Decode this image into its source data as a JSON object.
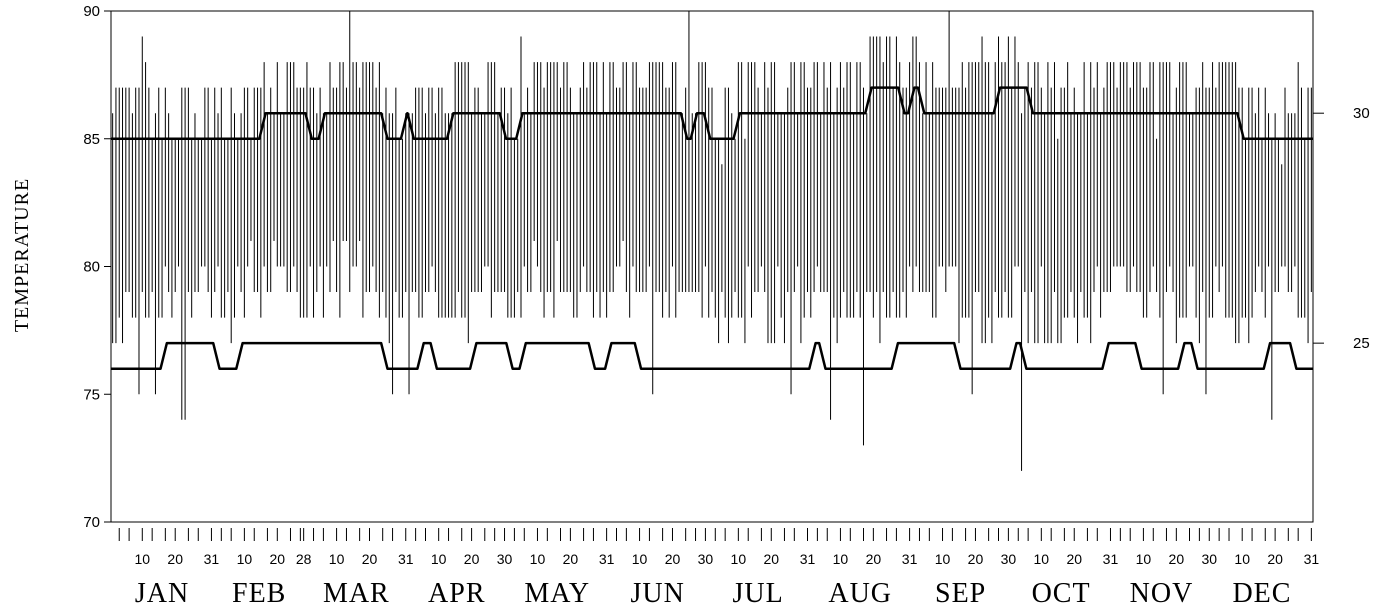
{
  "chart_data": {
    "type": "line",
    "title": "",
    "ylabel": "TEMPERATURE",
    "xlabel": "",
    "ylim": [
      70,
      90
    ],
    "y_ticks": [
      70,
      75,
      80,
      85,
      90
    ],
    "secondary_y_ticks": [
      25,
      30
    ],
    "secondary_y_mapping": "y2 = (y - 32) * 5 / 9",
    "months": [
      "JAN",
      "FEB",
      "MAR",
      "APR",
      "MAY",
      "JUN",
      "JUL",
      "AUG",
      "SEP",
      "OCT",
      "NOV",
      "DEC"
    ],
    "day_tick_labels": [
      [
        "10",
        "20",
        "31"
      ],
      [
        "10",
        "20",
        "28"
      ],
      [
        "10",
        "20",
        "31"
      ],
      [
        "10",
        "20",
        "30"
      ],
      [
        "10",
        "20",
        "31"
      ],
      [
        "10",
        "20",
        "30"
      ],
      [
        "10",
        "20",
        "31"
      ],
      [
        "10",
        "20",
        "31"
      ],
      [
        "10",
        "20",
        "30"
      ],
      [
        "10",
        "20",
        "31"
      ],
      [
        "10",
        "20",
        "30"
      ],
      [
        "10",
        "20",
        "31"
      ]
    ],
    "grid": false,
    "legend": "none",
    "series": [
      {
        "kind": "upper_envelope_step",
        "color": "#000000",
        "segments": [
          {
            "start_day": 1,
            "end_day": 46,
            "value": 85
          },
          {
            "start_day": 47,
            "end_day": 60,
            "value": 86
          },
          {
            "start_day": 61,
            "end_day": 64,
            "value": 85
          },
          {
            "start_day": 65,
            "end_day": 83,
            "value": 86
          },
          {
            "start_day": 84,
            "end_day": 89,
            "value": 85
          },
          {
            "start_day": 90,
            "end_day": 91,
            "value": 86
          },
          {
            "start_day": 92,
            "end_day": 103,
            "value": 85
          },
          {
            "start_day": 104,
            "end_day": 119,
            "value": 86
          },
          {
            "start_day": 120,
            "end_day": 124,
            "value": 85
          },
          {
            "start_day": 125,
            "end_day": 174,
            "value": 86
          },
          {
            "start_day": 175,
            "end_day": 177,
            "value": 85
          },
          {
            "start_day": 178,
            "end_day": 181,
            "value": 86
          },
          {
            "start_day": 182,
            "end_day": 190,
            "value": 85
          },
          {
            "start_day": 191,
            "end_day": 230,
            "value": 86
          },
          {
            "start_day": 231,
            "end_day": 240,
            "value": 87
          },
          {
            "start_day": 241,
            "end_day": 243,
            "value": 86
          },
          {
            "start_day": 244,
            "end_day": 246,
            "value": 87
          },
          {
            "start_day": 247,
            "end_day": 269,
            "value": 86
          },
          {
            "start_day": 270,
            "end_day": 279,
            "value": 87
          },
          {
            "start_day": 280,
            "end_day": 343,
            "value": 86
          },
          {
            "start_day": 344,
            "end_day": 365,
            "value": 85
          }
        ]
      },
      {
        "kind": "lower_envelope_step",
        "color": "#000000",
        "segments": [
          {
            "start_day": 1,
            "end_day": 16,
            "value": 76
          },
          {
            "start_day": 17,
            "end_day": 32,
            "value": 77
          },
          {
            "start_day": 33,
            "end_day": 39,
            "value": 76
          },
          {
            "start_day": 40,
            "end_day": 83,
            "value": 77
          },
          {
            "start_day": 84,
            "end_day": 94,
            "value": 76
          },
          {
            "start_day": 95,
            "end_day": 98,
            "value": 77
          },
          {
            "start_day": 99,
            "end_day": 110,
            "value": 76
          },
          {
            "start_day": 111,
            "end_day": 121,
            "value": 77
          },
          {
            "start_day": 122,
            "end_day": 125,
            "value": 76
          },
          {
            "start_day": 126,
            "end_day": 146,
            "value": 77
          },
          {
            "start_day": 147,
            "end_day": 151,
            "value": 76
          },
          {
            "start_day": 152,
            "end_day": 160,
            "value": 77
          },
          {
            "start_day": 161,
            "end_day": 213,
            "value": 76
          },
          {
            "start_day": 214,
            "end_day": 216,
            "value": 77
          },
          {
            "start_day": 217,
            "end_day": 238,
            "value": 76
          },
          {
            "start_day": 239,
            "end_day": 257,
            "value": 77
          },
          {
            "start_day": 258,
            "end_day": 274,
            "value": 76
          },
          {
            "start_day": 275,
            "end_day": 277,
            "value": 77
          },
          {
            "start_day": 278,
            "end_day": 302,
            "value": 76
          },
          {
            "start_day": 303,
            "end_day": 312,
            "value": 77
          },
          {
            "start_day": 313,
            "end_day": 325,
            "value": 76
          },
          {
            "start_day": 326,
            "end_day": 329,
            "value": 77
          },
          {
            "start_day": 330,
            "end_day": 351,
            "value": 76
          },
          {
            "start_day": 352,
            "end_day": 359,
            "value": 77
          },
          {
            "start_day": 360,
            "end_day": 365,
            "value": 76
          }
        ]
      },
      {
        "kind": "daily_min_max_bars",
        "color": "#000000",
        "note_low_days": [
          [
            22,
            74
          ],
          [
            23,
            74
          ],
          [
            9,
            75
          ],
          [
            14,
            75
          ],
          [
            86,
            75
          ],
          [
            91,
            75
          ],
          [
            165,
            75
          ],
          [
            207,
            75
          ],
          [
            219,
            74
          ],
          [
            229,
            73
          ],
          [
            277,
            72
          ],
          [
            262,
            75
          ],
          [
            320,
            75
          ],
          [
            333,
            75
          ],
          [
            353,
            74
          ]
        ],
        "note_high_days": [
          [
            10,
            89
          ],
          [
            11,
            88
          ],
          [
            73,
            90
          ],
          [
            125,
            89
          ],
          [
            176,
            90
          ],
          [
            255,
            90
          ],
          [
            265,
            89
          ],
          [
            243,
            88
          ],
          [
            361,
            88
          ]
        ]
      }
    ]
  }
}
